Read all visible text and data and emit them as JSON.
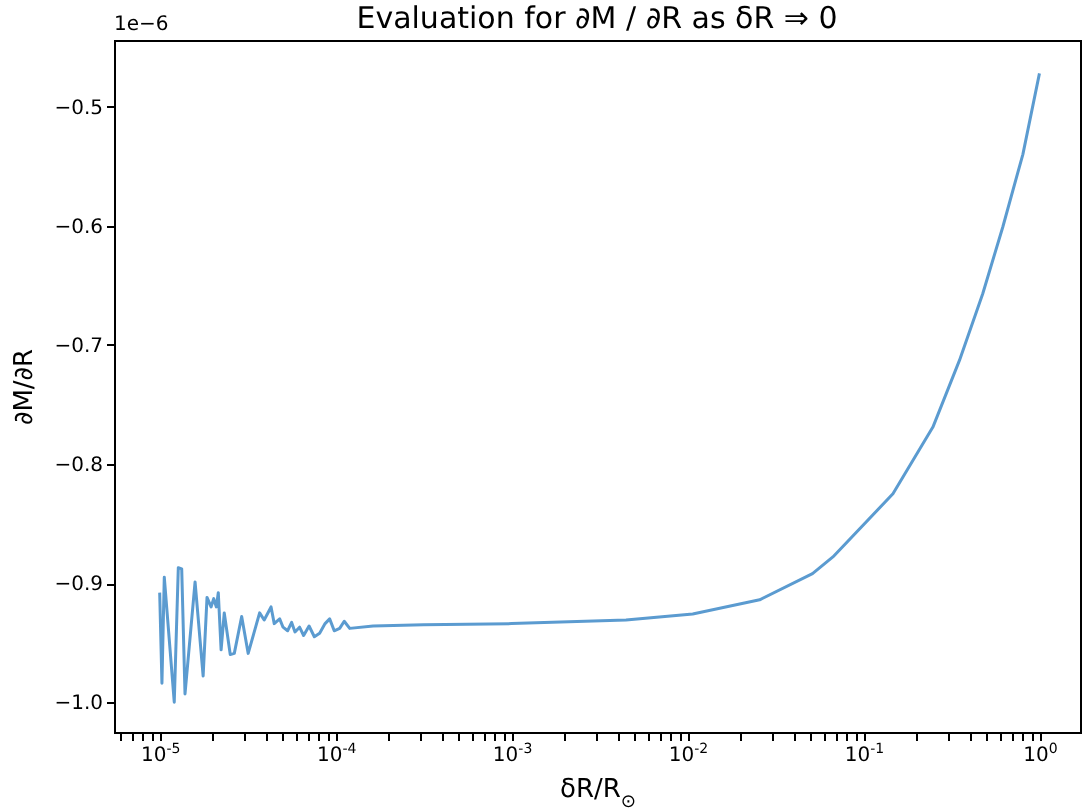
{
  "chart_data": {
    "type": "line",
    "title": "Evaluation for ∂M / ∂R as δR ⇒ 0",
    "xlabel": "δR/R$_{⊙}$",
    "ylabel": "∂M/∂R",
    "annotations": [
      "1e−6"
    ],
    "log": "x",
    "grid": false,
    "marker": "none",
    "line_style": "solid",
    "xlim": [
      5.5e-06,
      1.7
    ],
    "ylim": [
      -1.025,
      -0.444
    ],
    "xticks": [
      {
        "value": 6e-06,
        "label": null
      },
      {
        "value": 7e-06,
        "label": null
      },
      {
        "value": 8e-06,
        "label": null
      },
      {
        "value": 9e-06,
        "label": null
      },
      {
        "value": 1e-05,
        "label": "10$^{-5}$"
      },
      {
        "value": 2e-05,
        "label": null
      },
      {
        "value": 3e-05,
        "label": null
      },
      {
        "value": 4e-05,
        "label": null
      },
      {
        "value": 5e-05,
        "label": null
      },
      {
        "value": 6e-05,
        "label": null
      },
      {
        "value": 7e-05,
        "label": null
      },
      {
        "value": 8e-05,
        "label": null
      },
      {
        "value": 9e-05,
        "label": null
      },
      {
        "value": 0.0001,
        "label": "10$^{-4}$"
      },
      {
        "value": 0.0002,
        "label": null
      },
      {
        "value": 0.0003,
        "label": null
      },
      {
        "value": 0.0004,
        "label": null
      },
      {
        "value": 0.0005,
        "label": null
      },
      {
        "value": 0.0006,
        "label": null
      },
      {
        "value": 0.0007,
        "label": null
      },
      {
        "value": 0.0008,
        "label": null
      },
      {
        "value": 0.0009,
        "label": null
      },
      {
        "value": 0.001,
        "label": "10$^{-3}$"
      },
      {
        "value": 0.002,
        "label": null
      },
      {
        "value": 0.003,
        "label": null
      },
      {
        "value": 0.004,
        "label": null
      },
      {
        "value": 0.005,
        "label": null
      },
      {
        "value": 0.006,
        "label": null
      },
      {
        "value": 0.007,
        "label": null
      },
      {
        "value": 0.008,
        "label": null
      },
      {
        "value": 0.009,
        "label": null
      },
      {
        "value": 0.01,
        "label": "10$^{-2}$"
      },
      {
        "value": 0.02,
        "label": null
      },
      {
        "value": 0.03,
        "label": null
      },
      {
        "value": 0.04,
        "label": null
      },
      {
        "value": 0.05,
        "label": null
      },
      {
        "value": 0.06,
        "label": null
      },
      {
        "value": 0.07,
        "label": null
      },
      {
        "value": 0.08,
        "label": null
      },
      {
        "value": 0.09,
        "label": null
      },
      {
        "value": 0.1,
        "label": "10$^{-1}$"
      },
      {
        "value": 0.2,
        "label": null
      },
      {
        "value": 0.3,
        "label": null
      },
      {
        "value": 0.4,
        "label": null
      },
      {
        "value": 0.5,
        "label": null
      },
      {
        "value": 0.6,
        "label": null
      },
      {
        "value": 0.7,
        "label": null
      },
      {
        "value": 0.8,
        "label": null
      },
      {
        "value": 0.9,
        "label": null
      },
      {
        "value": 1,
        "label": "10$^{0}$"
      }
    ],
    "yticks": [
      {
        "value": -1.0,
        "label": "−1.0"
      },
      {
        "value": -0.9,
        "label": "−0.9"
      },
      {
        "value": -0.8,
        "label": "−0.8"
      },
      {
        "value": -0.7,
        "label": "−0.7"
      },
      {
        "value": -0.6,
        "label": "−0.6"
      },
      {
        "value": -0.5,
        "label": "−0.5"
      }
    ],
    "x": [
      1e-05,
      1.03e-05,
      1.062e-05,
      1.21e-05,
      1.276e-05,
      1.334e-05,
      1.393e-05,
      1.589e-05,
      1.766e-05,
      1.858e-05,
      1.959e-05,
      2.028e-05,
      2.099e-05,
      2.153e-05,
      2.234e-05,
      2.328e-05,
      2.518e-05,
      2.655e-05,
      2.924e-05,
      3.184e-05,
      3.698e-05,
      3.926e-05,
      4.295e-05,
      4.477e-05,
      4.808e-05,
      5.023e-05,
      5.333e-05,
      5.623e-05,
      5.875e-05,
      6.237e-05,
      6.577e-05,
      7.063e-05,
      7.568e-05,
      8.11e-05,
      8.71e-05,
      9.247e-05,
      9.817e-05,
      0.0001054,
      0.0001119,
      0.0001202,
      0.0001633,
      0.000316,
      0.001,
      0.00447,
      0.0107,
      0.0257,
      0.0513,
      0.067,
      0.147,
      0.248,
      0.351,
      0.476,
      0.619,
      0.805,
      1.0
    ],
    "series": [
      {
        "color": "#5b9bd0",
        "values": [
          -0.908,
          -0.984,
          -0.895,
          -1.0,
          -0.887,
          -0.888,
          -0.993,
          -0.899,
          -0.978,
          -0.912,
          -0.92,
          -0.913,
          -0.92,
          -0.908,
          -0.956,
          -0.925,
          -0.96,
          -0.959,
          -0.928,
          -0.959,
          -0.925,
          -0.931,
          -0.92,
          -0.934,
          -0.93,
          -0.937,
          -0.94,
          -0.933,
          -0.941,
          -0.937,
          -0.944,
          -0.936,
          -0.945,
          -0.942,
          -0.934,
          -0.93,
          -0.94,
          -0.938,
          -0.932,
          -0.938,
          -0.936,
          -0.935,
          -0.934,
          -0.931,
          -0.926,
          -0.914,
          -0.892,
          -0.878,
          -0.825,
          -0.769,
          -0.713,
          -0.657,
          -0.601,
          -0.54,
          -0.472
        ]
      }
    ]
  }
}
